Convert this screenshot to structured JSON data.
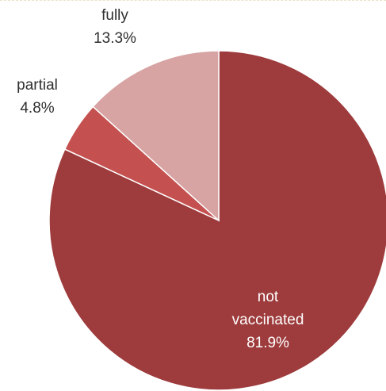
{
  "chart_data": {
    "type": "pie",
    "slices": [
      {
        "label": "not vaccinated",
        "label_lines": [
          "not",
          "vaccinated"
        ],
        "value": 81.9,
        "value_label": "81.9%",
        "color": "#9e3b3c",
        "label_color": "#ffffff"
      },
      {
        "label": "partial",
        "label_lines": [
          "partial"
        ],
        "value": 4.8,
        "value_label": "4.8%",
        "color": "#c4504f",
        "label_color": "#2f2f2f"
      },
      {
        "label": "fully",
        "label_lines": [
          "fully"
        ],
        "value": 13.3,
        "value_label": "13.3%",
        "color": "#d7a3a3",
        "label_color": "#2f2f2f"
      }
    ],
    "start_angle_deg": 0,
    "direction": "clockwise",
    "legend": "none"
  }
}
